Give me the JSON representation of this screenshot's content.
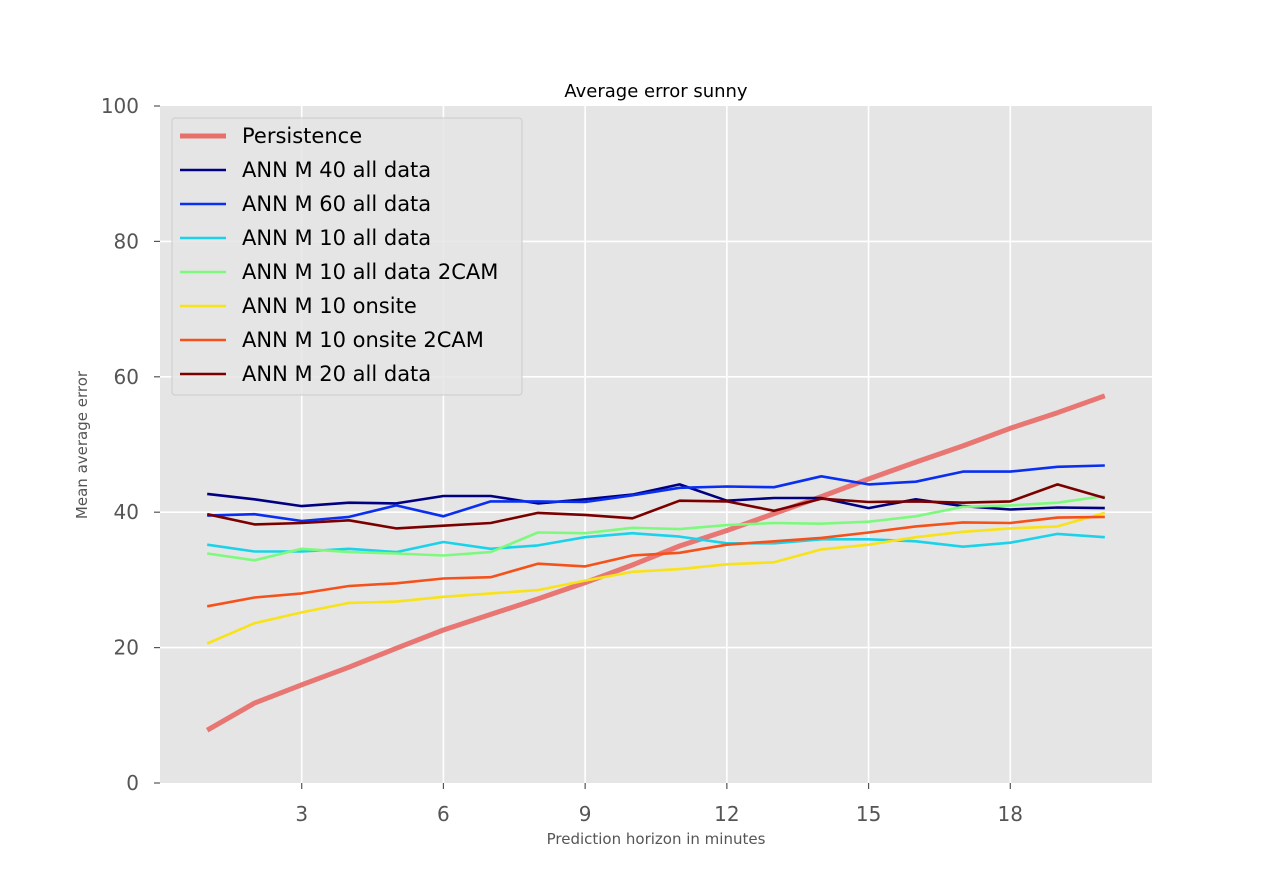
{
  "chart_data": {
    "type": "line",
    "title": "Average error sunny",
    "xlabel": "Prediction horizon in minutes",
    "ylabel": "Mean average error",
    "xlim": [
      0,
      21
    ],
    "ylim": [
      0,
      100
    ],
    "xticks": [
      3,
      6,
      9,
      12,
      15,
      18
    ],
    "yticks": [
      0,
      20,
      40,
      60,
      80,
      100
    ],
    "grid": true,
    "legend_position": "top-left",
    "x": [
      1,
      2,
      3,
      4,
      5,
      6,
      7,
      8,
      9,
      10,
      11,
      12,
      13,
      14,
      15,
      16,
      17,
      18,
      19,
      20
    ],
    "series": [
      {
        "name": "Persistence",
        "color": "#e8706b",
        "values": [
          7.8,
          11.8,
          14.5,
          17.1,
          19.9,
          22.6,
          24.9,
          27.2,
          29.6,
          32.2,
          35.0,
          37.3,
          39.8,
          42.3,
          44.9,
          47.4,
          49.8,
          52.4,
          54.7,
          57.2
        ]
      },
      {
        "name": "ANN M 40 all data",
        "color": "#000080",
        "values": [
          42.7,
          41.9,
          40.9,
          41.4,
          41.3,
          42.4,
          42.4,
          41.3,
          41.9,
          42.6,
          44.1,
          41.7,
          42.1,
          42.1,
          40.6,
          41.9,
          40.9,
          40.4,
          40.7,
          40.6
        ]
      },
      {
        "name": "ANN M 60 all data",
        "color": "#0a2ff0",
        "values": [
          39.5,
          39.7,
          38.7,
          39.3,
          41.0,
          39.4,
          41.6,
          41.6,
          41.5,
          42.5,
          43.6,
          43.8,
          43.7,
          45.3,
          44.1,
          44.5,
          46.0,
          46.0,
          46.7,
          46.9
        ]
      },
      {
        "name": "ANN M 10 all data",
        "color": "#1ad3ea",
        "values": [
          35.2,
          34.2,
          34.2,
          34.6,
          34.1,
          35.6,
          34.6,
          35.1,
          36.3,
          36.9,
          36.4,
          35.4,
          35.4,
          36.0,
          36.0,
          35.7,
          34.9,
          35.5,
          36.8,
          36.3
        ]
      },
      {
        "name": "ANN M 10 all data 2CAM",
        "color": "#7dfa7d",
        "values": [
          33.9,
          32.9,
          34.6,
          34.1,
          33.9,
          33.6,
          34.1,
          37.0,
          36.9,
          37.7,
          37.5,
          38.1,
          38.4,
          38.3,
          38.6,
          39.4,
          40.8,
          41.0,
          41.4,
          42.4
        ]
      },
      {
        "name": "ANN M 10 onsite",
        "color": "#f8e219",
        "values": [
          20.6,
          23.6,
          25.2,
          26.6,
          26.8,
          27.5,
          28.0,
          28.5,
          29.9,
          31.2,
          31.6,
          32.3,
          32.6,
          34.5,
          35.2,
          36.3,
          37.1,
          37.6,
          37.9,
          39.9
        ]
      },
      {
        "name": "ANN M 10 onsite 2CAM",
        "color": "#f5511b",
        "values": [
          26.1,
          27.4,
          28.0,
          29.1,
          29.5,
          30.2,
          30.4,
          32.4,
          32.0,
          33.6,
          34.0,
          35.2,
          35.7,
          36.2,
          37.0,
          37.9,
          38.5,
          38.4,
          39.2,
          39.3
        ]
      },
      {
        "name": "ANN M 20 all data",
        "color": "#7a0000",
        "values": [
          39.7,
          38.2,
          38.4,
          38.8,
          37.6,
          38.0,
          38.4,
          39.9,
          39.6,
          39.1,
          41.7,
          41.6,
          40.2,
          42.0,
          41.5,
          41.6,
          41.4,
          41.6,
          44.1,
          42.1
        ]
      }
    ]
  }
}
